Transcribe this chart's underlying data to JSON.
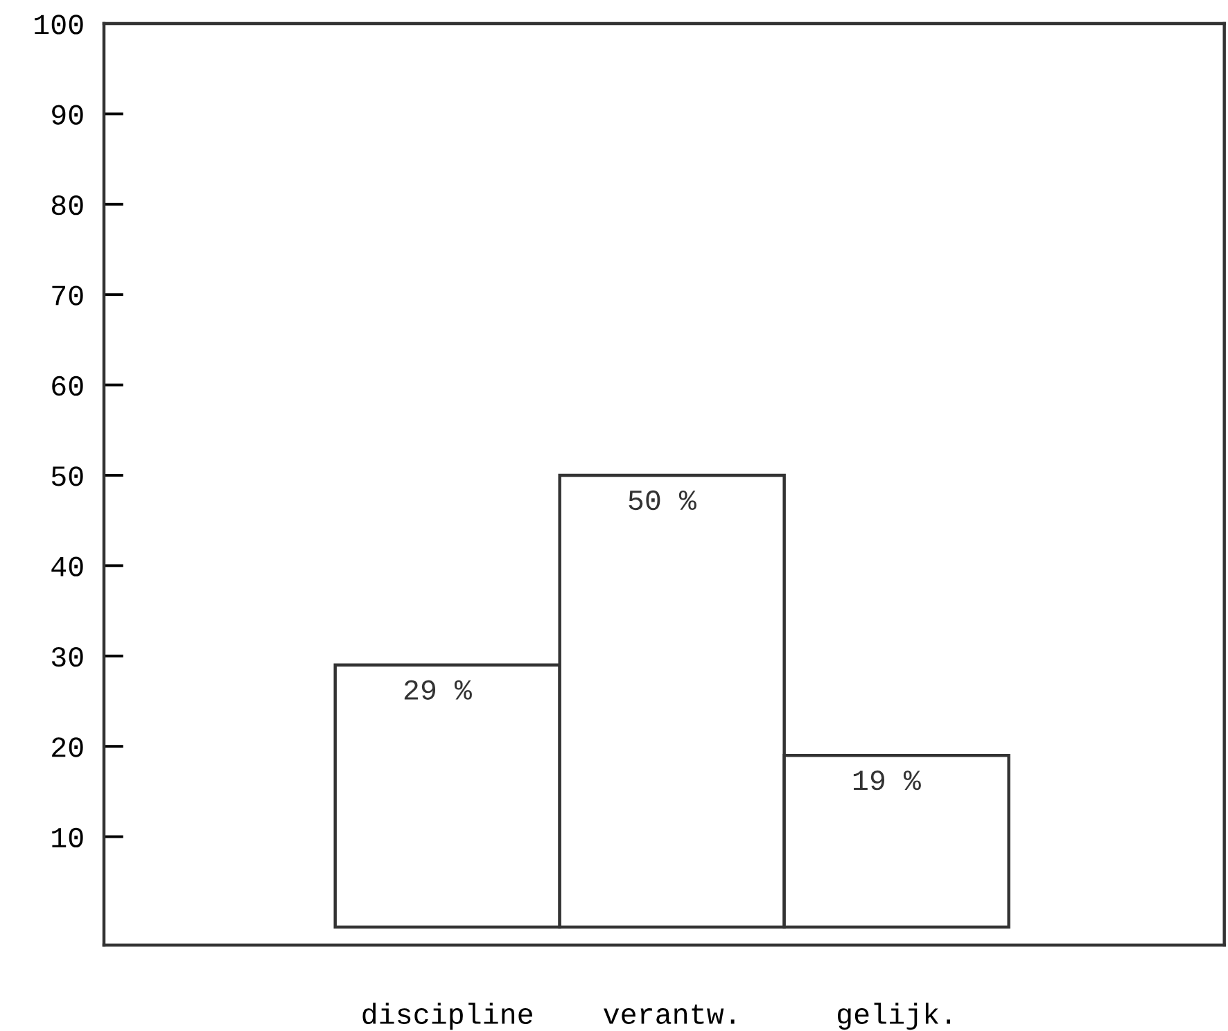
{
  "chart_data": {
    "type": "bar",
    "categories": [
      "discipline",
      "verantw.",
      "gelijk."
    ],
    "values": [
      29,
      50,
      19
    ],
    "value_labels": [
      "29 %",
      "50 %",
      "19 %"
    ],
    "color": "#ffffff",
    "ylim": [
      -2,
      100
    ],
    "yticks": [
      10,
      20,
      30,
      40,
      50,
      60,
      70,
      80,
      90,
      100
    ],
    "grid": false
  }
}
